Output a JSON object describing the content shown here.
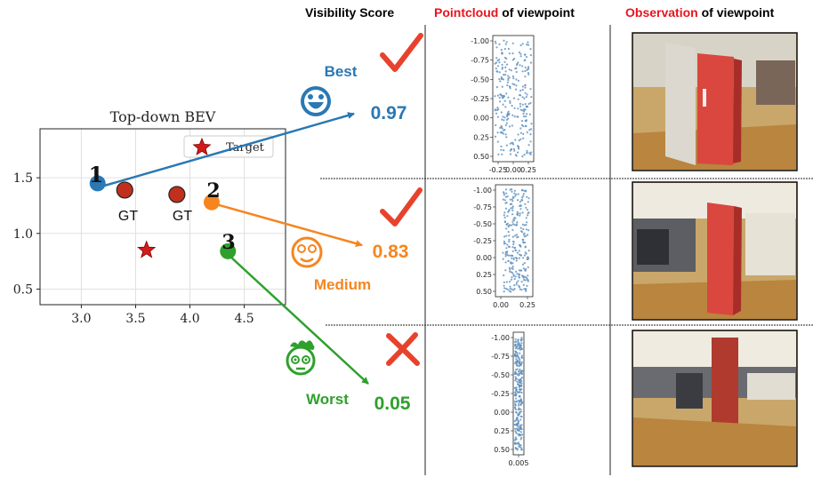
{
  "headers": {
    "visibility": "Visibility Score",
    "pointcloud_highlight": "Pointcloud",
    "pointcloud_rest": " of viewpoint",
    "observation_highlight": "Observation",
    "observation_rest": " of viewpoint"
  },
  "bev": {
    "title": "Top-down BEV",
    "legend_label": "Target",
    "gt_label": "GT",
    "x_ticks": [
      "3.0",
      "3.5",
      "4.0",
      "4.5"
    ],
    "y_ticks": [
      "1.5",
      "1.0",
      "0.5"
    ]
  },
  "viewpoints": [
    {
      "rank": "1",
      "rating": "Best",
      "score": "0.97",
      "color": "#2a78b4",
      "x": 3.15,
      "y": 1.45
    },
    {
      "rank": "2",
      "rating": "Medium",
      "score": "0.83",
      "color": "#f6851f",
      "x": 4.2,
      "y": 1.28
    },
    {
      "rank": "3",
      "rating": "Worst",
      "score": "0.05",
      "color": "#2ea02c",
      "x": 4.35,
      "y": 0.84
    }
  ],
  "gt_points": [
    {
      "x": 3.4,
      "y": 1.39
    },
    {
      "x": 3.88,
      "y": 1.35
    }
  ],
  "target_points": [
    {
      "x": 3.6,
      "y": 0.85
    }
  ],
  "colors": {
    "check": "#e8422c",
    "cross": "#e8422c",
    "gt_fill": "#c0301c",
    "target": "#d01c1c",
    "scatter": "#5b8fbd"
  },
  "pointclouds": [
    {
      "y_ticks": [
        "-1.00",
        "-0.75",
        "-0.50",
        "-0.25",
        "0.00",
        "0.25",
        "0.50"
      ],
      "x_ticks": [
        "-0.25",
        "0.00",
        "0.25"
      ]
    },
    {
      "y_ticks": [
        "-1.00",
        "-0.75",
        "-0.50",
        "-0.25",
        "0.00",
        "0.25",
        "0.50"
      ],
      "x_ticks": [
        "0.00",
        "0.25"
      ]
    },
    {
      "y_ticks": [
        "-1.00",
        "-0.75",
        "-0.50",
        "-0.25",
        "0.00",
        "0.25",
        "0.50"
      ],
      "x_ticks": [
        "0.005"
      ]
    }
  ]
}
